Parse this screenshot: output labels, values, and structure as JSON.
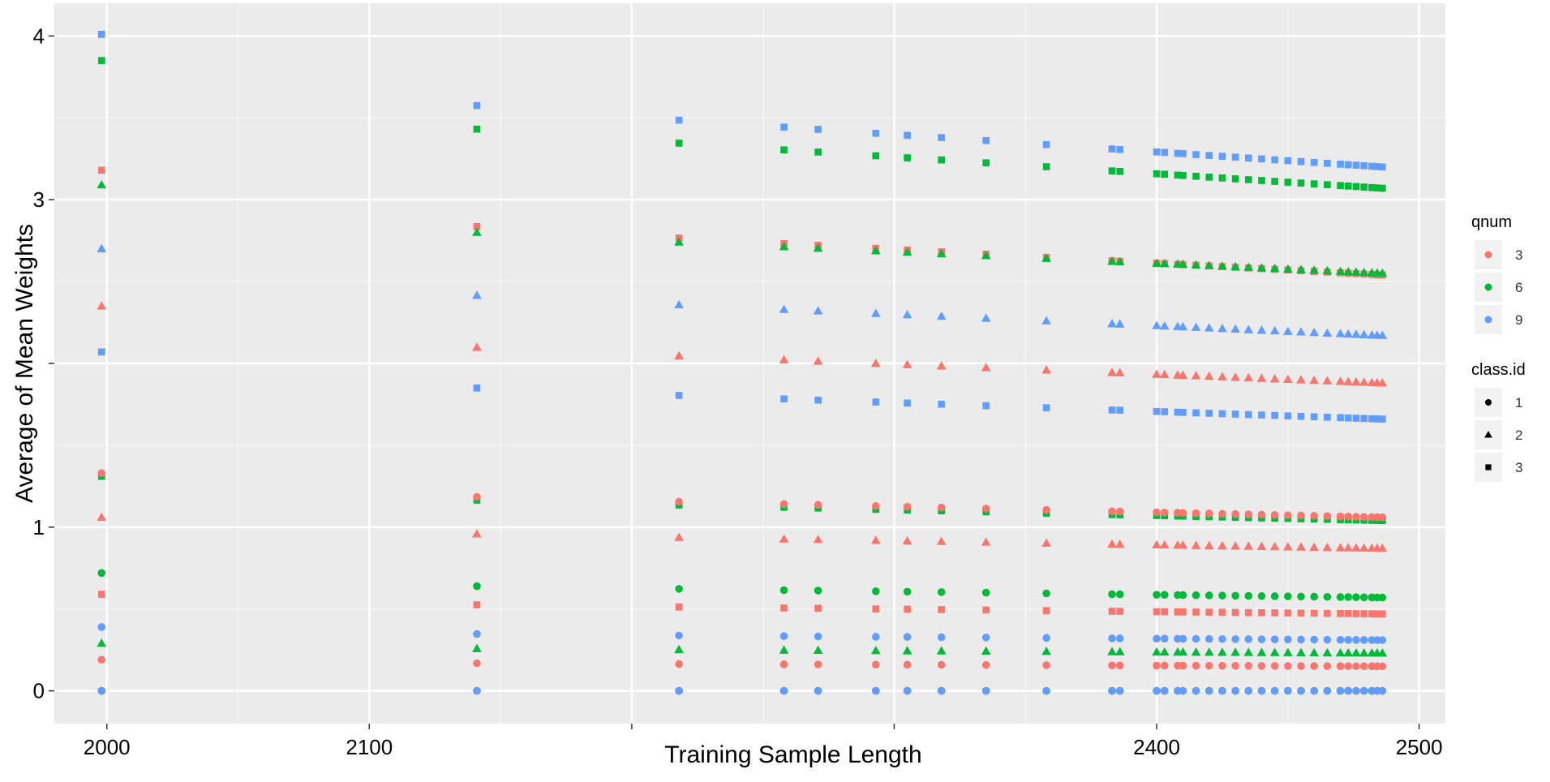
{
  "chart_data": {
    "type": "scatter",
    "title": "",
    "xlabel": "Training Sample Length",
    "ylabel": "Average of Mean Weights",
    "xlim": [
      1980,
      2510
    ],
    "ylim": [
      -0.2,
      4.2
    ],
    "x_ticks": [
      2000,
      2100,
      2200,
      2300,
      2400,
      2500
    ],
    "x_tick_labels": [
      "2000",
      "2100",
      "",
      "",
      "2400",
      "2500"
    ],
    "y_ticks": [
      0,
      1,
      2,
      3,
      4
    ],
    "y_tick_labels": [
      "0",
      "1",
      "",
      "3",
      "4"
    ],
    "grid": true,
    "background": "#EBEBEB",
    "legends": [
      {
        "title": "qnum",
        "kind": "color",
        "entries": [
          {
            "label": "3",
            "color": "#F8766D"
          },
          {
            "label": "6",
            "color": "#00BA38"
          },
          {
            "label": "9",
            "color": "#619CFF"
          }
        ]
      },
      {
        "title": "class.id",
        "kind": "shape",
        "entries": [
          {
            "label": "1",
            "shape": "circle"
          },
          {
            "label": "2",
            "shape": "triangle"
          },
          {
            "label": "3",
            "shape": "square"
          }
        ]
      }
    ],
    "x": [
      1998,
      2141,
      2218,
      2258,
      2271,
      2293,
      2305,
      2318,
      2335,
      2358,
      2383,
      2386,
      2400,
      2403,
      2408,
      2410,
      2415,
      2420,
      2425,
      2430,
      2435,
      2440,
      2445,
      2450,
      2455,
      2460,
      2465,
      2470,
      2473,
      2476,
      2479,
      2482,
      2484,
      2486
    ],
    "series": [
      {
        "qnum": "3",
        "class_id": "1",
        "start": 0.19,
        "end": 0.15
      },
      {
        "qnum": "3",
        "class_id": "2",
        "start": 1.06,
        "end": 0.87
      },
      {
        "qnum": "3",
        "class_id": "3",
        "start": 0.59,
        "end": 0.47
      },
      {
        "qnum": "6",
        "class_id": "1",
        "start": 0.72,
        "end": 0.57
      },
      {
        "qnum": "6",
        "class_id": "2",
        "start": 0.29,
        "end": 0.23
      },
      {
        "qnum": "6",
        "class_id": "3",
        "start": 1.31,
        "end": 1.04
      },
      {
        "qnum": "9",
        "class_id": "1",
        "start": 0.39,
        "end": 0.31
      },
      {
        "qnum": "9",
        "class_id": "2",
        "start": 2.7,
        "end": 2.17
      },
      {
        "qnum": "9",
        "class_id": "3",
        "start": 2.07,
        "end": 1.66
      },
      {
        "qnum": "3",
        "class_id": "1",
        "start": 1.33,
        "end": 1.06
      },
      {
        "qnum": "3",
        "class_id": "2",
        "start": 2.35,
        "end": 1.88
      },
      {
        "qnum": "3",
        "class_id": "3",
        "start": 3.18,
        "end": 2.54
      },
      {
        "qnum": "6",
        "class_id": "2",
        "start": 3.09,
        "end": 2.55
      },
      {
        "qnum": "6",
        "class_id": "3",
        "start": 3.85,
        "end": 3.07
      },
      {
        "qnum": "9",
        "class_id": "3",
        "start": 4.01,
        "end": 3.2
      },
      {
        "qnum": "3",
        "class_id": "1",
        "start": 0.0,
        "end": 0.0
      },
      {
        "qnum": "6",
        "class_id": "1",
        "start": 0.0,
        "end": 0.0
      },
      {
        "qnum": "9",
        "class_id": "1",
        "start": 0.0,
        "end": 0.0
      }
    ]
  }
}
